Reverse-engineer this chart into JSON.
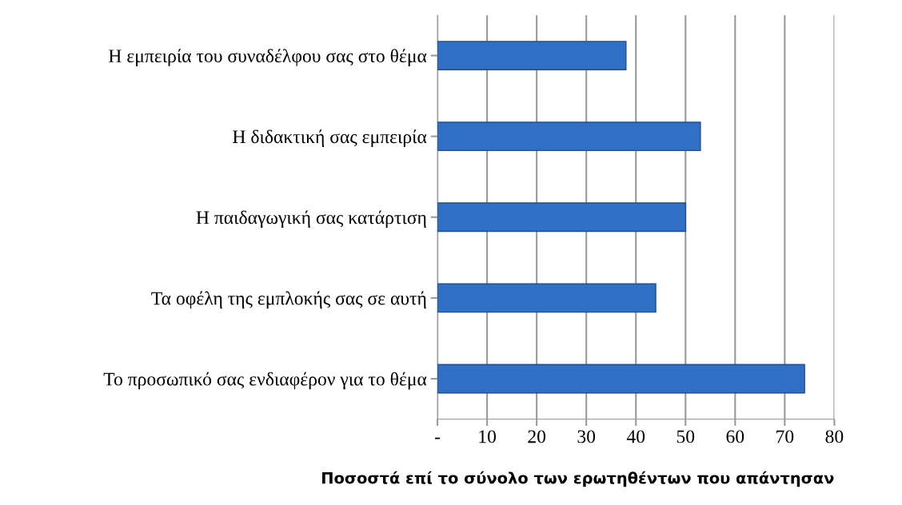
{
  "chart_data": {
    "type": "bar",
    "orientation": "horizontal",
    "xlabel": "Ποσοστά επί το σύνολο των ερωτηθέντων που απάντησαν",
    "categories": [
      "Η εμπειρία του συναδέλφου σας στο θέμα",
      "Η διδακτική σας εμπειρία",
      "Η παιδαγωγική σας κατάρτιση",
      "Τα οφέλη της εμπλοκής σας σε αυτή",
      "Το προσωπικό σας ενδιαφέρον για το θέμα"
    ],
    "values": [
      38,
      53,
      50,
      44,
      74
    ],
    "color": "#3070c4",
    "xlim": [
      0,
      80
    ],
    "xticks": [
      {
        "value": 0,
        "label": "-"
      },
      10,
      20,
      30,
      40,
      50,
      60,
      70,
      80
    ],
    "grid": "x"
  }
}
